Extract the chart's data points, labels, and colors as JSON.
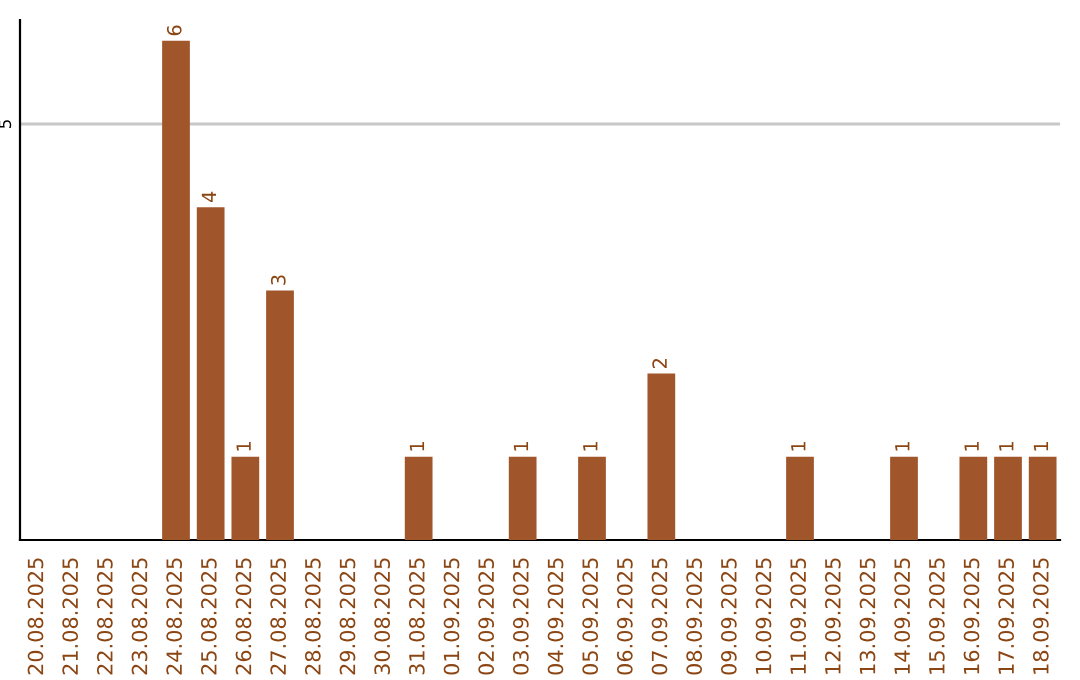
{
  "chart_data": {
    "type": "bar",
    "categories": [
      "20.08.2025",
      "21.08.2025",
      "22.08.2025",
      "23.08.2025",
      "24.08.2025",
      "25.08.2025",
      "26.08.2025",
      "27.08.2025",
      "28.08.2025",
      "29.08.2025",
      "30.08.2025",
      "31.08.2025",
      "01.09.2025",
      "02.09.2025",
      "03.09.2025",
      "04.09.2025",
      "05.09.2025",
      "06.09.2025",
      "07.09.2025",
      "08.09.2025",
      "09.09.2025",
      "10.09.2025",
      "11.09.2025",
      "12.09.2025",
      "13.09.2025",
      "14.09.2025",
      "15.09.2025",
      "16.09.2025",
      "17.09.2025",
      "18.09.2025"
    ],
    "values": [
      0,
      0,
      0,
      0,
      6,
      4,
      1,
      3,
      0,
      0,
      0,
      1,
      0,
      0,
      1,
      0,
      1,
      0,
      2,
      0,
      0,
      0,
      1,
      0,
      0,
      1,
      0,
      1,
      1,
      1
    ],
    "value_labels": [
      null,
      null,
      null,
      null,
      "6",
      "4",
      "1",
      "3",
      null,
      null,
      null,
      "1",
      null,
      null,
      "1",
      null,
      "1",
      null,
      "2",
      null,
      null,
      null,
      "1",
      null,
      null,
      "1",
      null,
      "1",
      "1",
      "1"
    ],
    "color": "#a0562a",
    "ylim": [
      0,
      6.25
    ],
    "yticks": [
      5
    ],
    "grid": "y"
  }
}
